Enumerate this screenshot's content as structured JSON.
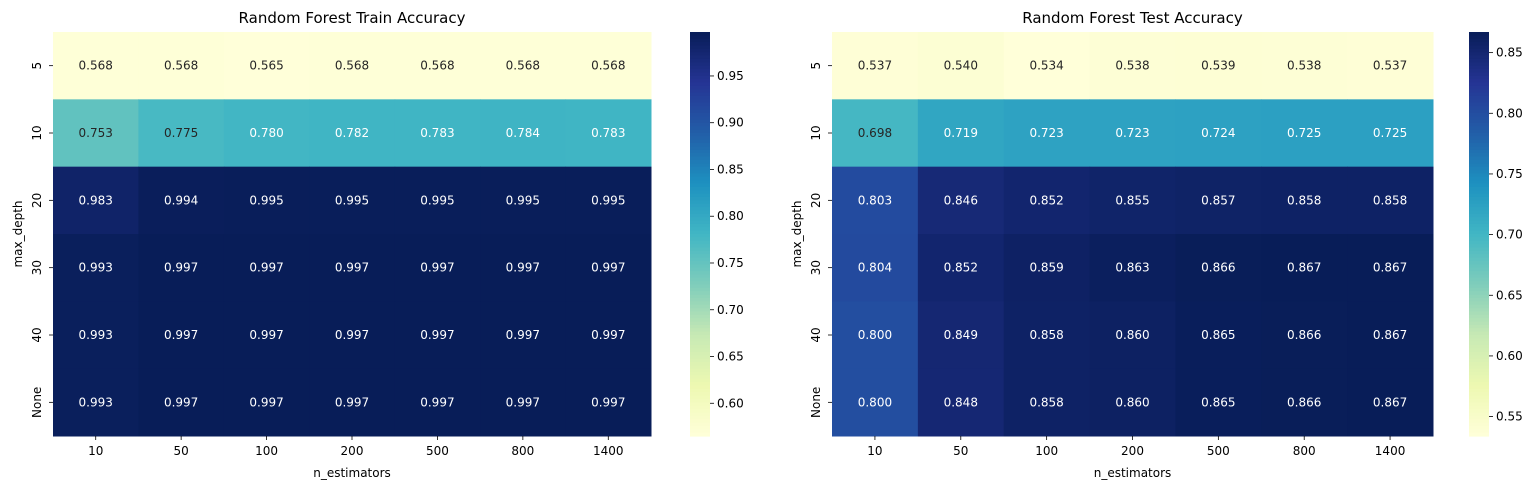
{
  "chart_data": [
    {
      "type": "heatmap",
      "title": "Random Forest Train Accuracy",
      "xlabel": "n_estimators",
      "ylabel": "max_depth",
      "x": [
        "10",
        "50",
        "100",
        "200",
        "500",
        "800",
        "1400"
      ],
      "y": [
        "5",
        "10",
        "20",
        "30",
        "40",
        "None"
      ],
      "values": [
        [
          0.568,
          0.568,
          0.565,
          0.568,
          0.568,
          0.568,
          0.568
        ],
        [
          0.753,
          0.775,
          0.78,
          0.782,
          0.783,
          0.784,
          0.783
        ],
        [
          0.983,
          0.994,
          0.995,
          0.995,
          0.995,
          0.995,
          0.995
        ],
        [
          0.993,
          0.997,
          0.997,
          0.997,
          0.997,
          0.997,
          0.997
        ],
        [
          0.993,
          0.997,
          0.997,
          0.997,
          0.997,
          0.997,
          0.997
        ],
        [
          0.993,
          0.997,
          0.997,
          0.997,
          0.997,
          0.997,
          0.997
        ]
      ],
      "colormap": "YlGnBu",
      "vmin": 0.565,
      "vmax": 0.997,
      "colorbar_ticks": [
        0.6,
        0.65,
        0.7,
        0.75,
        0.8,
        0.85,
        0.9,
        0.95
      ]
    },
    {
      "type": "heatmap",
      "title": "Random Forest Test Accuracy",
      "xlabel": "n_estimators",
      "ylabel": "max_depth",
      "x": [
        "10",
        "50",
        "100",
        "200",
        "500",
        "800",
        "1400"
      ],
      "y": [
        "5",
        "10",
        "20",
        "30",
        "40",
        "None"
      ],
      "values": [
        [
          0.537,
          0.54,
          0.534,
          0.538,
          0.539,
          0.538,
          0.537
        ],
        [
          0.698,
          0.719,
          0.723,
          0.723,
          0.724,
          0.725,
          0.725
        ],
        [
          0.803,
          0.846,
          0.852,
          0.855,
          0.857,
          0.858,
          0.858
        ],
        [
          0.804,
          0.852,
          0.859,
          0.863,
          0.866,
          0.867,
          0.867
        ],
        [
          0.8,
          0.849,
          0.858,
          0.86,
          0.865,
          0.866,
          0.867
        ],
        [
          0.8,
          0.848,
          0.858,
          0.86,
          0.865,
          0.866,
          0.867
        ]
      ],
      "colormap": "YlGnBu",
      "vmin": 0.534,
      "vmax": 0.867,
      "colorbar_ticks": [
        0.55,
        0.6,
        0.65,
        0.7,
        0.75,
        0.8,
        0.85
      ]
    }
  ]
}
